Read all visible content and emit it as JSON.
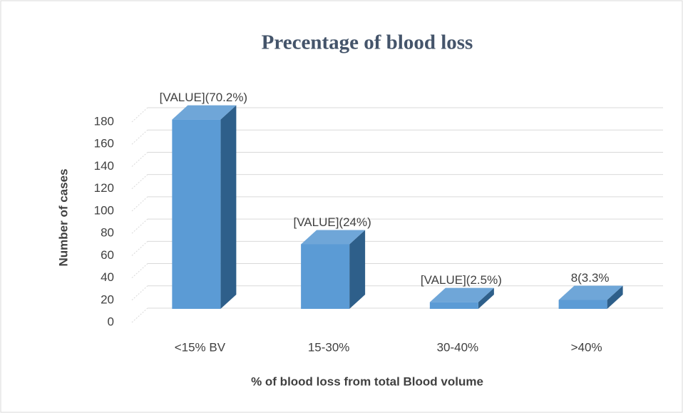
{
  "chart_data": {
    "type": "bar3d",
    "title": "Precentage of blood loss",
    "x_label": "% of blood loss from total Blood volume",
    "y_label": "Number of cases",
    "categories": [
      "<15% BV",
      "15-30%",
      "30-40%",
      ">40%"
    ],
    "values": [
      170,
      58,
      6,
      8
    ],
    "value_labels": [
      "[VALUE](70.2%)",
      "[VALUE](24%)",
      "[VALUE](2.5%)",
      "8(3.3%"
    ],
    "color": "#5b9bd5",
    "ylim": [
      0,
      180
    ],
    "yticks": [
      0,
      20,
      40,
      60,
      80,
      100,
      120,
      140,
      160,
      180
    ],
    "grid": true
  }
}
